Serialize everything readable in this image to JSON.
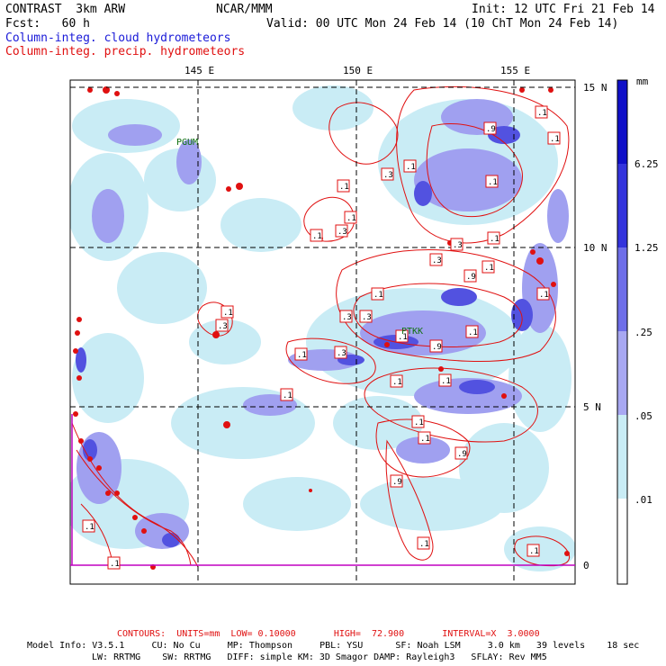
{
  "header": {
    "model": "CONTRAST  3km ARW",
    "org": "NCAR/MMM",
    "init": "Init: 12 UTC Fri 21 Feb 14",
    "fcst": "Fcst:   60 h",
    "valid": "Valid: 00 UTC Mon 24 Feb 14 (10 ChT Mon 24 Feb 14)",
    "field_cloud": "Column-integ. cloud hydrometeors",
    "field_precip": "Column-integ. precip. hydrometeors"
  },
  "map": {
    "lon_labels": [
      "145 E",
      "150 E",
      "155 E"
    ],
    "lat_labels": [
      "15 N",
      "10 N",
      "5 N",
      "0"
    ],
    "stations": [
      "PGUM",
      "PTKK"
    ],
    "colors": {
      "cloud_light": "#c9ecf5",
      "cloud_mid": "#a0a0f0",
      "cloud_dark": "#5252e0",
      "precip_contour": "#e01010",
      "equator": "#c000c0"
    },
    "contour_labels": [
      ".1",
      ".1",
      ".1",
      ".3",
      ".3",
      ".9",
      ".1",
      ".1",
      ".1",
      ".1",
      ".3",
      ".1",
      ".3",
      ".9",
      ".1",
      ".1",
      ".1",
      ".3",
      ".3",
      ".9",
      ".1",
      ".1",
      ".3",
      ".1",
      ".1",
      ".1",
      ".1",
      ".9",
      ".1",
      ".1",
      ".3",
      ".9",
      ".1",
      ".1",
      ".1",
      ".1",
      ".1"
    ]
  },
  "colorbar": {
    "unit": "mm",
    "levels": [
      "6.25",
      "1.25",
      ".25",
      ".05",
      ".01"
    ],
    "colors": [
      "#1010c8",
      "#3434dc",
      "#6e6ee8",
      "#a8a8f2",
      "#c9ecf5",
      "#ffffff"
    ]
  },
  "footer": {
    "contours": "CONTOURS:  UNITS=mm  LOW= 0.10000       HIGH=  72.900       INTERVAL=X  3.0000",
    "model_info_1": "Model Info: V3.5.1     CU: No Cu     MP: Thompson     PBL: YSU      SF: Noah LSM     3.0 km   39 levels    18 sec",
    "model_info_2": "LW: RRTMG    SW: RRTMG   DIFF: simple KM: 3D Smagor DAMP: Rayleigh3   SFLAY: Rev MM5"
  }
}
